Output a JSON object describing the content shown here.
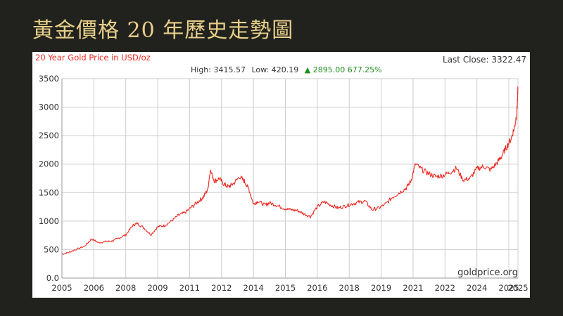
{
  "slide": {
    "title": "黃金價格 20 年歷史走勢圖"
  },
  "chart_data": {
    "type": "line",
    "title": "20 Year Gold Price in USD/oz",
    "last_close_label": "Last Close: 3322.47",
    "stats": {
      "high_text": "High: 3415.57",
      "low_text": "Low: 420.19",
      "change_text": "▲ 2895.00 677.25%"
    },
    "watermark": "goldprice.org",
    "xlabel": "",
    "ylabel": "",
    "xlim": [
      2005,
      2025
    ],
    "ylim": [
      0,
      3500
    ],
    "x_ticks": [
      "2005",
      "2006",
      "2008",
      "2009",
      "2011",
      "2012",
      "2014",
      "2015",
      "2016",
      "2018",
      "2019",
      "2021",
      "2022",
      "2024",
      "2025"
    ],
    "x_tick_values": [
      2005,
      2006.4,
      2007.8,
      2009.2,
      2010.6,
      2012.0,
      2013.4,
      2014.8,
      2016.2,
      2017.6,
      2019.0,
      2020.4,
      2021.8,
      2023.2,
      2024.6
    ],
    "y_ticks": [
      "0.0",
      "500",
      "1000",
      "1500",
      "2000",
      "2500",
      "3000",
      "3500"
    ],
    "y_tick_values": [
      0,
      500,
      1000,
      1500,
      2000,
      2500,
      3000,
      3500
    ],
    "grid": true,
    "colors": {
      "line": "#ee2a22",
      "title": "#ee2a22",
      "change": "#1f8f1f",
      "grid": "#cccccc",
      "text": "#333333"
    },
    "series": [
      {
        "x": [
          2005.0,
          2005.3,
          2005.6,
          2006.0,
          2006.3,
          2006.6,
          2006.9,
          2007.2,
          2007.5,
          2007.8,
          2008.1,
          2008.3,
          2008.6,
          2008.9,
          2009.2,
          2009.5,
          2009.8,
          2010.1,
          2010.4,
          2010.7,
          2011.0,
          2011.2,
          2011.4,
          2011.5,
          2011.7,
          2011.9,
          2012.1,
          2012.3,
          2012.5,
          2012.8,
          2013.0,
          2013.2,
          2013.4,
          2013.6,
          2013.9,
          2014.1,
          2014.4,
          2014.7,
          2015.0,
          2015.3,
          2015.6,
          2015.9,
          2016.2,
          2016.5,
          2016.8,
          2017.1,
          2017.4,
          2017.7,
          2018.0,
          2018.3,
          2018.6,
          2018.9,
          2019.2,
          2019.5,
          2019.8,
          2020.1,
          2020.3,
          2020.5,
          2020.8,
          2021.1,
          2021.4,
          2021.7,
          2022.0,
          2022.3,
          2022.6,
          2022.9,
          2023.2,
          2023.5,
          2023.8,
          2024.1,
          2024.3,
          2024.5,
          2024.7,
          2024.85,
          2024.95,
          2025.0
        ],
        "y": [
          420,
          450,
          500,
          560,
          690,
          620,
          640,
          650,
          700,
          760,
          920,
          960,
          880,
          760,
          900,
          920,
          1000,
          1100,
          1150,
          1250,
          1350,
          1420,
          1560,
          1890,
          1700,
          1750,
          1650,
          1600,
          1650,
          1780,
          1700,
          1560,
          1300,
          1350,
          1280,
          1320,
          1280,
          1230,
          1200,
          1190,
          1130,
          1080,
          1250,
          1340,
          1280,
          1230,
          1260,
          1300,
          1330,
          1350,
          1200,
          1230,
          1300,
          1420,
          1500,
          1580,
          1700,
          2000,
          1900,
          1830,
          1780,
          1800,
          1850,
          1930,
          1720,
          1750,
          1920,
          1960,
          1900,
          2030,
          2150,
          2300,
          2450,
          2650,
          2900,
          3320
        ]
      }
    ]
  }
}
